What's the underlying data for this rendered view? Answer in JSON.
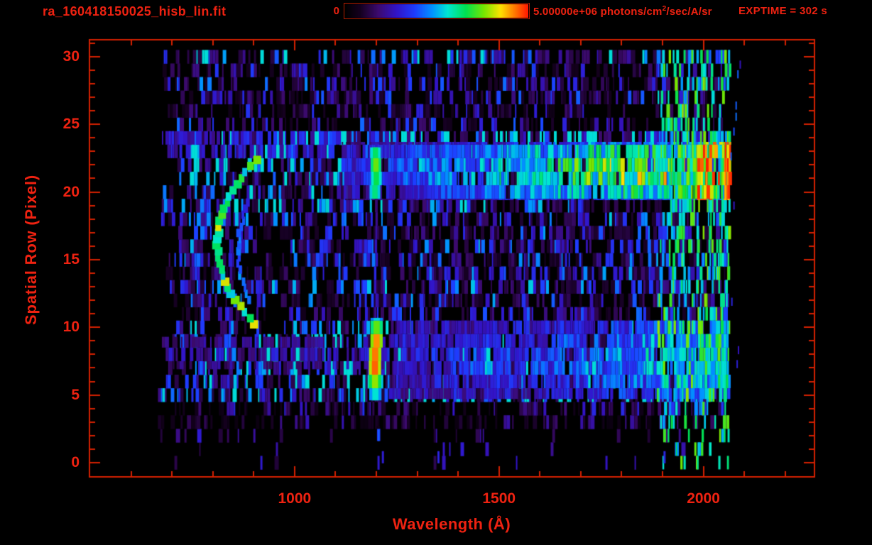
{
  "header": {
    "title": "ra_160418150025_hisb_lin.fit",
    "exptime": "EXPTIME = 302 s",
    "colorbar": {
      "min_label": "0",
      "units_pre": "5.00000e+06 photons/cm",
      "units_sup": "2",
      "units_post": "/sec/A/sr"
    }
  },
  "axes": {
    "x_title": "Wavelength (Å)",
    "y_title": "Spatial Row (Pixel)"
  },
  "colors": {
    "text_red": "#ee2211",
    "line_red": "#d42000",
    "background": "#000000"
  },
  "chart_data": {
    "type": "heatmap",
    "title": "ra_160418150025_hisb_lin.fit",
    "xlabel": "Wavelength (Å)",
    "ylabel": "Spatial Row (Pixel)",
    "xlim": [
      500,
      2270
    ],
    "ylim": [
      -1,
      31.2
    ],
    "x_major_ticks": [
      1000,
      1500,
      2000
    ],
    "x_minor_step": 100,
    "x_minor_range": [
      600,
      2200
    ],
    "y_major_ticks": [
      0,
      5,
      10,
      15,
      20,
      25,
      30
    ],
    "y_minor_step": 1,
    "exptime_seconds": 302,
    "colorbar_range": [
      0,
      5000000
    ],
    "colorbar_units": "photons/cm^2/sec/A/sr",
    "colormap_stops": [
      [
        0.0,
        "#000000"
      ],
      [
        0.08,
        "#14001e"
      ],
      [
        0.18,
        "#3c0a6e"
      ],
      [
        0.28,
        "#3214c8"
      ],
      [
        0.38,
        "#1e3cff"
      ],
      [
        0.48,
        "#0096ff"
      ],
      [
        0.56,
        "#00e6d2"
      ],
      [
        0.66,
        "#00e150"
      ],
      [
        0.76,
        "#78e600"
      ],
      [
        0.85,
        "#ffe100"
      ],
      [
        0.92,
        "#ff8200"
      ],
      [
        1.0,
        "#ff1900"
      ]
    ],
    "seed": 1604181500,
    "data_lambda_range": [
      665,
      2062
    ],
    "row_count": 31,
    "row_activity": [
      0.05,
      0.08,
      0.09,
      0.3,
      0.42,
      0.58,
      0.62,
      0.68,
      0.7,
      0.62,
      0.55,
      0.45,
      0.52,
      0.56,
      0.52,
      0.5,
      0.55,
      0.52,
      0.56,
      0.6,
      0.58,
      0.6,
      0.66,
      0.78,
      0.72,
      0.48,
      0.42,
      0.46,
      0.52,
      0.46,
      0.58
    ],
    "row_blue_bias": [
      1.0,
      1.0,
      1.0,
      0.9,
      0.9,
      1.25,
      1.25,
      1.3,
      1.3,
      1.25,
      1.2,
      1.0,
      1.0,
      1.05,
      1.0,
      1.0,
      1.0,
      1.0,
      1.05,
      1.15,
      1.15,
      1.15,
      1.2,
      1.3,
      1.25,
      0.95,
      0.9,
      0.95,
      1.0,
      0.95,
      1.25
    ],
    "features": [
      {
        "type": "band",
        "name": "upper-spectrum-continuum",
        "rows": [
          19.4,
          23.7
        ],
        "lambda": [
          1105,
          2062
        ],
        "center_row": 21.6,
        "edge_falloff": 0.35,
        "gap": 0.12,
        "ramp": [
          [
            1105,
            0.3
          ],
          [
            1250,
            0.38
          ],
          [
            1420,
            0.48
          ],
          [
            1560,
            0.58
          ],
          [
            1700,
            0.66
          ],
          [
            1840,
            0.73
          ],
          [
            1960,
            0.78
          ],
          [
            2062,
            0.8
          ]
        ]
      },
      {
        "type": "band",
        "name": "lower-spectrum-continuum",
        "rows": [
          4.7,
          10.5
        ],
        "lambda": [
          1230,
          2062
        ],
        "center_row": 7.6,
        "edge_falloff": 0.3,
        "gap": 0.18,
        "ramp": [
          [
            1230,
            0.3
          ],
          [
            1450,
            0.33
          ],
          [
            1650,
            0.38
          ],
          [
            1850,
            0.48
          ],
          [
            1980,
            0.56
          ],
          [
            2062,
            0.62
          ]
        ]
      },
      {
        "type": "band",
        "name": "upper-left-enhancement",
        "rows": [
          22.5,
          24.5
        ],
        "lambda": [
          675,
          1110
        ],
        "center_row": 23.5,
        "edge_falloff": 0.25,
        "gap": 0.35,
        "ramp": [
          [
            675,
            0.3
          ],
          [
            1110,
            0.33
          ]
        ]
      },
      {
        "type": "band",
        "name": "lower-left-enhancement",
        "rows": [
          6.9,
          9.3
        ],
        "lambda": [
          675,
          1225
        ],
        "center_row": 8.1,
        "edge_falloff": 0.25,
        "gap": 0.45,
        "ramp": [
          [
            675,
            0.24
          ],
          [
            1225,
            0.28
          ]
        ]
      },
      {
        "type": "arc",
        "name": "airglow-arc-main",
        "vertex_lambda": 812,
        "vertex_row": 16.2,
        "curvature": 2.5,
        "row_range": [
          10.2,
          22.4
        ],
        "width_lambda": 16,
        "intensity": 0.7
      },
      {
        "type": "arc",
        "name": "airglow-arc-secondary",
        "vertex_lambda": 862,
        "vertex_row": 15.6,
        "curvature": 2.0,
        "row_range": [
          12.0,
          19.3
        ],
        "width_lambda": 9,
        "intensity": 0.42
      },
      {
        "type": "emission_line",
        "name": "lyman-alpha-lower",
        "lambda": 1199,
        "width_lambda": 30,
        "rows": [
          4.6,
          10.7
        ],
        "intensity": 0.78
      },
      {
        "type": "emission_line",
        "name": "lyman-alpha-upper",
        "lambda": 1199,
        "width_lambda": 26,
        "rows": [
          19.5,
          23.3
        ],
        "intensity": 0.64
      },
      {
        "type": "emission_line",
        "name": "lyman-alpha-faint-mid",
        "lambda": 1199,
        "width_lambda": 6,
        "rows": [
          10.7,
          19.5
        ],
        "intensity": 0.25
      },
      {
        "type": "emission_line",
        "name": "lyman-alpha-dash-low",
        "lambda": 1205,
        "width_lambda": 8,
        "rows": [
          1.6,
          2.7
        ],
        "intensity": 0.35
      },
      {
        "type": "edge_streaks",
        "name": "detector-edge-streaks",
        "lambda": [
          1885,
          2062
        ],
        "rows": [
          0,
          30
        ],
        "density": 0.55,
        "intensity": [
          0.45,
          0.78
        ]
      },
      {
        "type": "edge_hot",
        "name": "upper-band-hot-end",
        "lambda": [
          1985,
          2062
        ],
        "rows": [
          19.4,
          23.7
        ],
        "density": 0.55,
        "intensity": [
          0.78,
          1.0
        ]
      },
      {
        "type": "edge_terminator",
        "name": "red-termination-edge",
        "lambda": [
          2052,
          2064
        ],
        "rows": [
          19.4,
          23.7
        ],
        "intensity": [
          0.85,
          1.0
        ]
      },
      {
        "type": "row_dashes",
        "name": "row-zero-dashes",
        "row": 0.35,
        "lambdas": [
          1216,
          1352,
          1905
        ],
        "intensity": 0.32
      },
      {
        "type": "overshoot_dashes",
        "name": "beyond-edge-dashes",
        "lambda": [
          2064,
          2090
        ],
        "rows": [
          0,
          30
        ],
        "count": 10,
        "intensity": [
          0.25,
          0.45
        ]
      }
    ]
  }
}
